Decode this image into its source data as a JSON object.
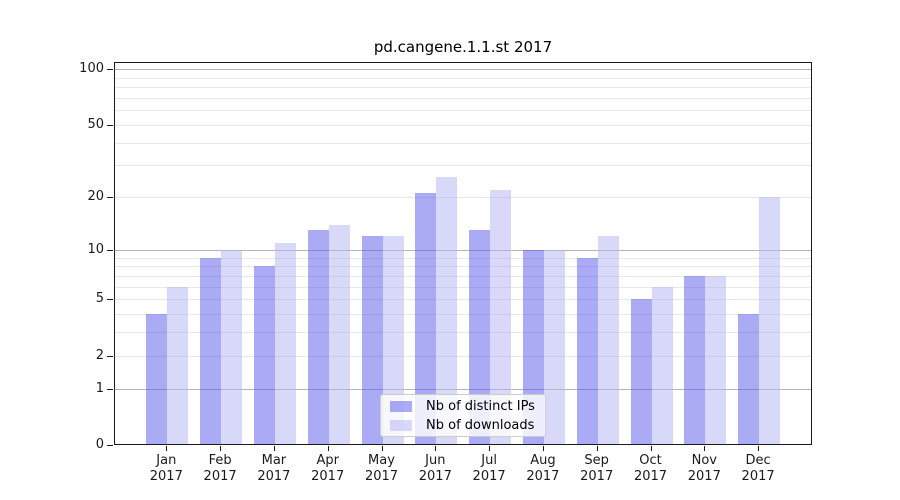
{
  "chart_data": {
    "type": "bar",
    "title": "pd.cangene.1.1.st 2017",
    "x_months": [
      "Jan",
      "Feb",
      "Mar",
      "Apr",
      "May",
      "Jun",
      "Jul",
      "Aug",
      "Sep",
      "Oct",
      "Nov",
      "Dec"
    ],
    "x_year": "2017",
    "series": [
      {
        "name": "Nb of distinct IPs",
        "color_over_white": "#aaaaf5",
        "fill_rgba": "rgba(85,85,235,0.5)",
        "values": [
          4,
          9,
          8,
          13,
          12,
          21,
          13,
          10,
          9,
          5,
          7,
          4
        ]
      },
      {
        "name": "Nb of downloads",
        "color_over_white": "#d8d8f8",
        "fill_rgba": "rgba(178,178,242,0.5)",
        "values": [
          6,
          10,
          11,
          14,
          12,
          26,
          22,
          10,
          12,
          6,
          7,
          20
        ]
      }
    ],
    "y_axis": {
      "scale": "log1p",
      "tick_labels": [
        "100",
        "50",
        "20",
        "10",
        "5",
        "2",
        "1",
        "0"
      ],
      "tick_values": [
        100,
        50,
        20,
        10,
        5,
        2,
        1,
        0
      ],
      "limits": [
        0,
        110
      ]
    },
    "grid": {
      "major_values": [
        1,
        10,
        100
      ],
      "minor_values": [
        2,
        3,
        4,
        5,
        6,
        7,
        8,
        9,
        20,
        30,
        40,
        50,
        60,
        70,
        80,
        90
      ],
      "major_color": "#b4b4b4",
      "minor_color": "#e7e7e7"
    },
    "legend_position": "lower center"
  }
}
